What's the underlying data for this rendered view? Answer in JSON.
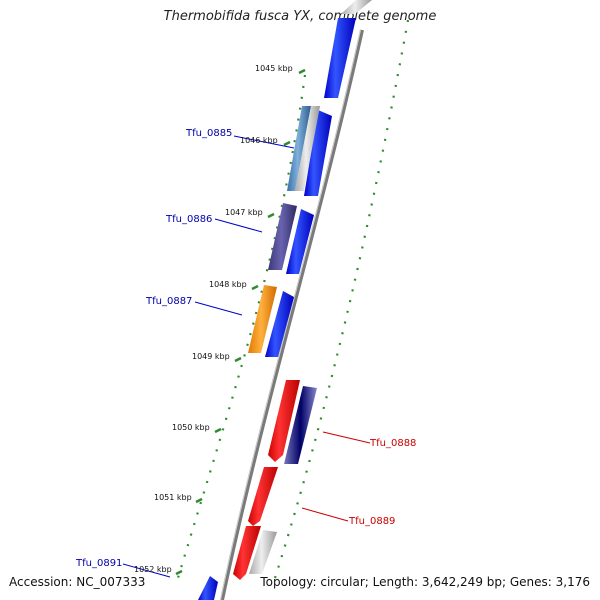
{
  "title": "Thermobifida fusca YX, complete genome",
  "accession": "Accession: NC_007333",
  "topology": "Topology: circular; Length: 3,642,249 bp; Genes: 3,176",
  "colors": {
    "forward_strand": "#0000ee",
    "reverse_strand": "#ee0000",
    "gc_track": "#2e8b2e",
    "backbone": "#888888",
    "label_blue": "#0000aa",
    "label_red": "#cc0000"
  },
  "ticks": [
    {
      "label": "1045 kbp"
    },
    {
      "label": "1046 kbp"
    },
    {
      "label": "1047 kbp"
    },
    {
      "label": "1048 kbp"
    },
    {
      "label": "1049 kbp"
    },
    {
      "label": "1050 kbp"
    },
    {
      "label": "1051 kbp"
    },
    {
      "label": "1052 kbp"
    }
  ],
  "gene_labels": [
    {
      "name": "Tfu_0885",
      "color": "#0000aa"
    },
    {
      "name": "Tfu_0886",
      "color": "#0000aa"
    },
    {
      "name": "Tfu_0887",
      "color": "#0000aa"
    },
    {
      "name": "Tfu_0888",
      "color": "#cc0000"
    },
    {
      "name": "Tfu_0889",
      "color": "#cc0000"
    },
    {
      "name": "Tfu_0891",
      "color": "#0000aa"
    }
  ]
}
